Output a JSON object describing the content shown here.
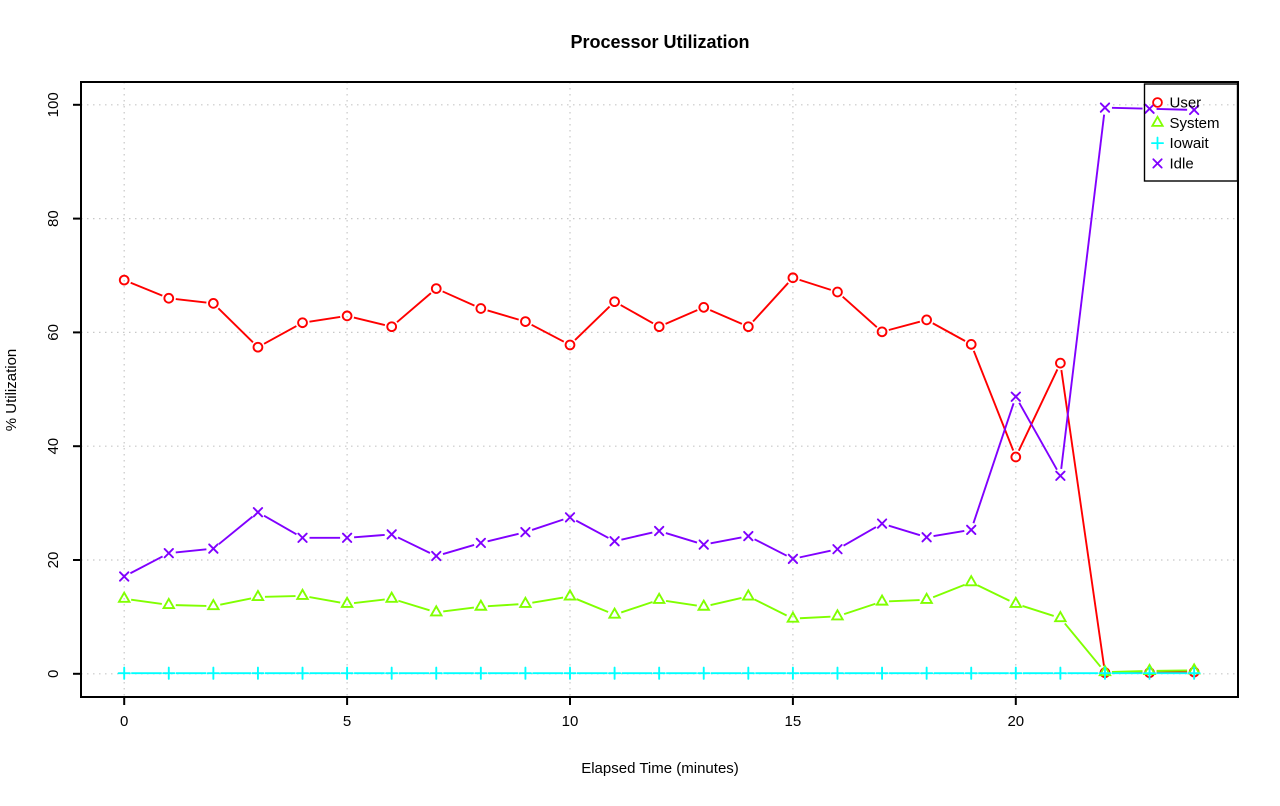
{
  "title": "Processor Utilization",
  "axes": {
    "x_label": "Elapsed Time (minutes)",
    "y_label": "% Utilization",
    "x_tick_labels": [
      "0",
      "5",
      "10",
      "15",
      "20"
    ],
    "y_tick_labels": [
      "0",
      "20",
      "40",
      "60",
      "80",
      "100"
    ]
  },
  "legend": {
    "items": [
      {
        "label": "User",
        "marker": "circle-icon",
        "color": "#ff0000"
      },
      {
        "label": "System",
        "marker": "triangle-icon",
        "color": "#80ff00"
      },
      {
        "label": "Iowait",
        "marker": "plus-icon",
        "color": "#00ffff"
      },
      {
        "label": "Idle",
        "marker": "x-icon",
        "color": "#8000ff"
      }
    ]
  },
  "colors": {
    "background": "#ffffff",
    "grid": "#c8c8c8",
    "axis": "#000000"
  },
  "chart_data": {
    "type": "line",
    "title": "Processor Utilization",
    "xlabel": "Elapsed Time (minutes)",
    "ylabel": "% Utilization",
    "xlim": [
      0,
      24
    ],
    "ylim": [
      0,
      100
    ],
    "x_ticks": [
      0,
      5,
      10,
      15,
      20
    ],
    "y_ticks": [
      0,
      20,
      40,
      60,
      80,
      100
    ],
    "grid": true,
    "legend_position": "top-right",
    "x": [
      0,
      1,
      2,
      3,
      4,
      5,
      6,
      7,
      8,
      9,
      10,
      11,
      12,
      13,
      14,
      15,
      16,
      17,
      18,
      19,
      20,
      21,
      22,
      23,
      24
    ],
    "series": [
      {
        "name": "User",
        "color": "#ff0000",
        "marker": "circle",
        "values": [
          69.2,
          66.0,
          65.1,
          57.4,
          61.7,
          62.9,
          61.0,
          67.7,
          64.2,
          61.9,
          57.8,
          65.4,
          61.0,
          64.4,
          61.0,
          69.6,
          67.1,
          60.1,
          62.2,
          57.9,
          38.1,
          54.6,
          0.2,
          0.2,
          0.3
        ]
      },
      {
        "name": "System",
        "color": "#80ff00",
        "marker": "triangle",
        "values": [
          13.2,
          12.1,
          11.9,
          13.5,
          13.7,
          12.3,
          13.2,
          10.8,
          11.8,
          12.3,
          13.6,
          10.4,
          13.0,
          11.8,
          13.6,
          9.7,
          10.1,
          12.7,
          13.0,
          16.1,
          12.3,
          9.8,
          0.3,
          0.5,
          0.6
        ]
      },
      {
        "name": "Iowait",
        "color": "#00ffff",
        "marker": "plus",
        "values": [
          0.1,
          0.1,
          0.1,
          0.1,
          0.1,
          0.1,
          0.1,
          0.1,
          0.1,
          0.1,
          0.1,
          0.1,
          0.1,
          0.1,
          0.1,
          0.1,
          0.1,
          0.1,
          0.1,
          0.1,
          0.1,
          0.1,
          0.1,
          0.1,
          0.1
        ]
      },
      {
        "name": "Idle",
        "color": "#8000ff",
        "marker": "x",
        "values": [
          17.1,
          21.2,
          22.0,
          28.4,
          23.9,
          23.9,
          24.5,
          20.7,
          23.0,
          24.9,
          27.5,
          23.3,
          25.1,
          22.7,
          24.2,
          20.2,
          21.9,
          26.4,
          24.0,
          25.3,
          48.7,
          34.8,
          99.5,
          99.3,
          99.1
        ]
      }
    ]
  }
}
